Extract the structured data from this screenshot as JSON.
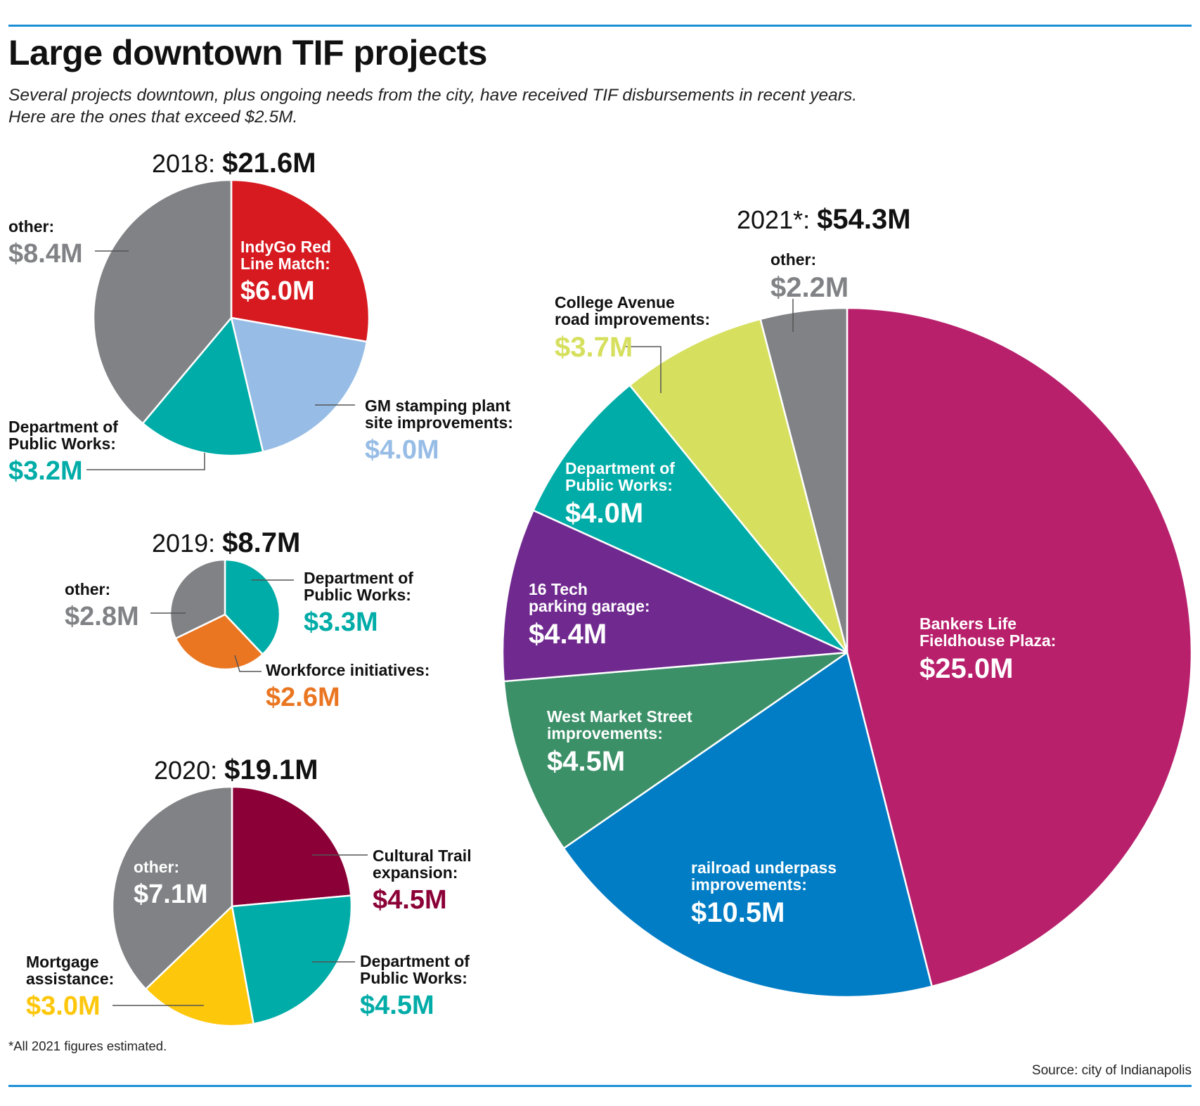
{
  "title": "Large downtown TIF projects",
  "subtitle_lines": [
    "Several projects downtown, plus ongoing needs from the city, have received TIF disbursements in recent years.",
    "Here are the ones that exceed $2.5M."
  ],
  "footnote": "*All 2021 figures estimated.",
  "source": "Source: city of Indianapolis",
  "colors": {
    "rule": "#1b8fd6",
    "text": "#111111",
    "other_gray": "#808285"
  },
  "chart_data": [
    {
      "type": "pie",
      "year_label": "2018:",
      "total_label": "$21.6M",
      "slices": [
        {
          "label_lines": [
            "IndyGo Red",
            "Line Match:"
          ],
          "value_label": "$6.0M",
          "value": 6.0,
          "color": "#d71920",
          "label_color": "#ffffff",
          "value_color": "#ffffff"
        },
        {
          "label_lines": [
            "GM stamping plant",
            "site improvements:"
          ],
          "value_label": "$4.0M",
          "value": 4.0,
          "color": "#97bde6",
          "label_color": "#111111",
          "value_color": "#97bde6"
        },
        {
          "label_lines": [
            "Department of",
            "Public Works:"
          ],
          "value_label": "$3.2M",
          "value": 3.2,
          "color": "#00aca7",
          "label_color": "#111111",
          "value_color": "#00aca7"
        },
        {
          "label_lines": [
            "other:"
          ],
          "value_label": "$8.4M",
          "value": 8.4,
          "color": "#808285",
          "label_color": "#111111",
          "value_color": "#808285"
        }
      ]
    },
    {
      "type": "pie",
      "year_label": "2019:",
      "total_label": "$8.7M",
      "slices": [
        {
          "label_lines": [
            "Department of",
            "Public Works:"
          ],
          "value_label": "$3.3M",
          "value": 3.3,
          "color": "#00aca7",
          "label_color": "#111111",
          "value_color": "#00aca7"
        },
        {
          "label_lines": [
            "Workforce initiatives:"
          ],
          "value_label": "$2.6M",
          "value": 2.6,
          "color": "#ea7622",
          "label_color": "#111111",
          "value_color": "#ea7622"
        },
        {
          "label_lines": [
            "other:"
          ],
          "value_label": "$2.8M",
          "value": 2.8,
          "color": "#808285",
          "label_color": "#111111",
          "value_color": "#808285"
        }
      ]
    },
    {
      "type": "pie",
      "year_label": "2020:",
      "total_label": "$19.1M",
      "slices": [
        {
          "label_lines": [
            "Cultural Trail",
            "expansion:"
          ],
          "value_label": "$4.5M",
          "value": 4.5,
          "color": "#8b0037",
          "label_color": "#111111",
          "value_color": "#8b0037"
        },
        {
          "label_lines": [
            "Department of",
            "Public Works:"
          ],
          "value_label": "$4.5M",
          "value": 4.5,
          "color": "#00aca7",
          "label_color": "#111111",
          "value_color": "#00aca7"
        },
        {
          "label_lines": [
            "Mortgage",
            "assistance:"
          ],
          "value_label": "$3.0M",
          "value": 3.0,
          "color": "#fdc70c",
          "label_color": "#111111",
          "value_color": "#fdc70c"
        },
        {
          "label_lines": [
            "other:"
          ],
          "value_label": "$7.1M",
          "value": 7.1,
          "color": "#808285",
          "label_color": "#ffffff",
          "value_color": "#ffffff"
        }
      ]
    },
    {
      "type": "pie",
      "year_label": "2021*:",
      "total_label": "$54.3M",
      "slices": [
        {
          "label_lines": [
            "Bankers Life",
            "Fieldhouse Plaza:"
          ],
          "value_label": "$25.0M",
          "value": 25.0,
          "color": "#b8206c",
          "label_color": "#ffffff",
          "value_color": "#ffffff"
        },
        {
          "label_lines": [
            "railroad underpass",
            "improvements:"
          ],
          "value_label": "$10.5M",
          "value": 10.5,
          "color": "#017dc5",
          "label_color": "#ffffff",
          "value_color": "#ffffff"
        },
        {
          "label_lines": [
            "West Market Street",
            "improvements:"
          ],
          "value_label": "$4.5M",
          "value": 4.5,
          "color": "#3b9068",
          "label_color": "#ffffff",
          "value_color": "#ffffff"
        },
        {
          "label_lines": [
            "16 Tech",
            "parking garage:"
          ],
          "value_label": "$4.4M",
          "value": 4.4,
          "color": "#702a8f",
          "label_color": "#ffffff",
          "value_color": "#ffffff"
        },
        {
          "label_lines": [
            "Department of",
            "Public Works:"
          ],
          "value_label": "$4.0M",
          "value": 4.0,
          "color": "#00aca7",
          "label_color": "#ffffff",
          "value_color": "#ffffff"
        },
        {
          "label_lines": [
            "College Avenue",
            "road improvements:"
          ],
          "value_label": "$3.7M",
          "value": 3.7,
          "color": "#d6e05e",
          "label_color": "#111111",
          "value_color": "#d6e05e"
        },
        {
          "label_lines": [
            "other:"
          ],
          "value_label": "$2.2M",
          "value": 2.2,
          "color": "#808285",
          "label_color": "#111111",
          "value_color": "#808285"
        }
      ]
    }
  ]
}
